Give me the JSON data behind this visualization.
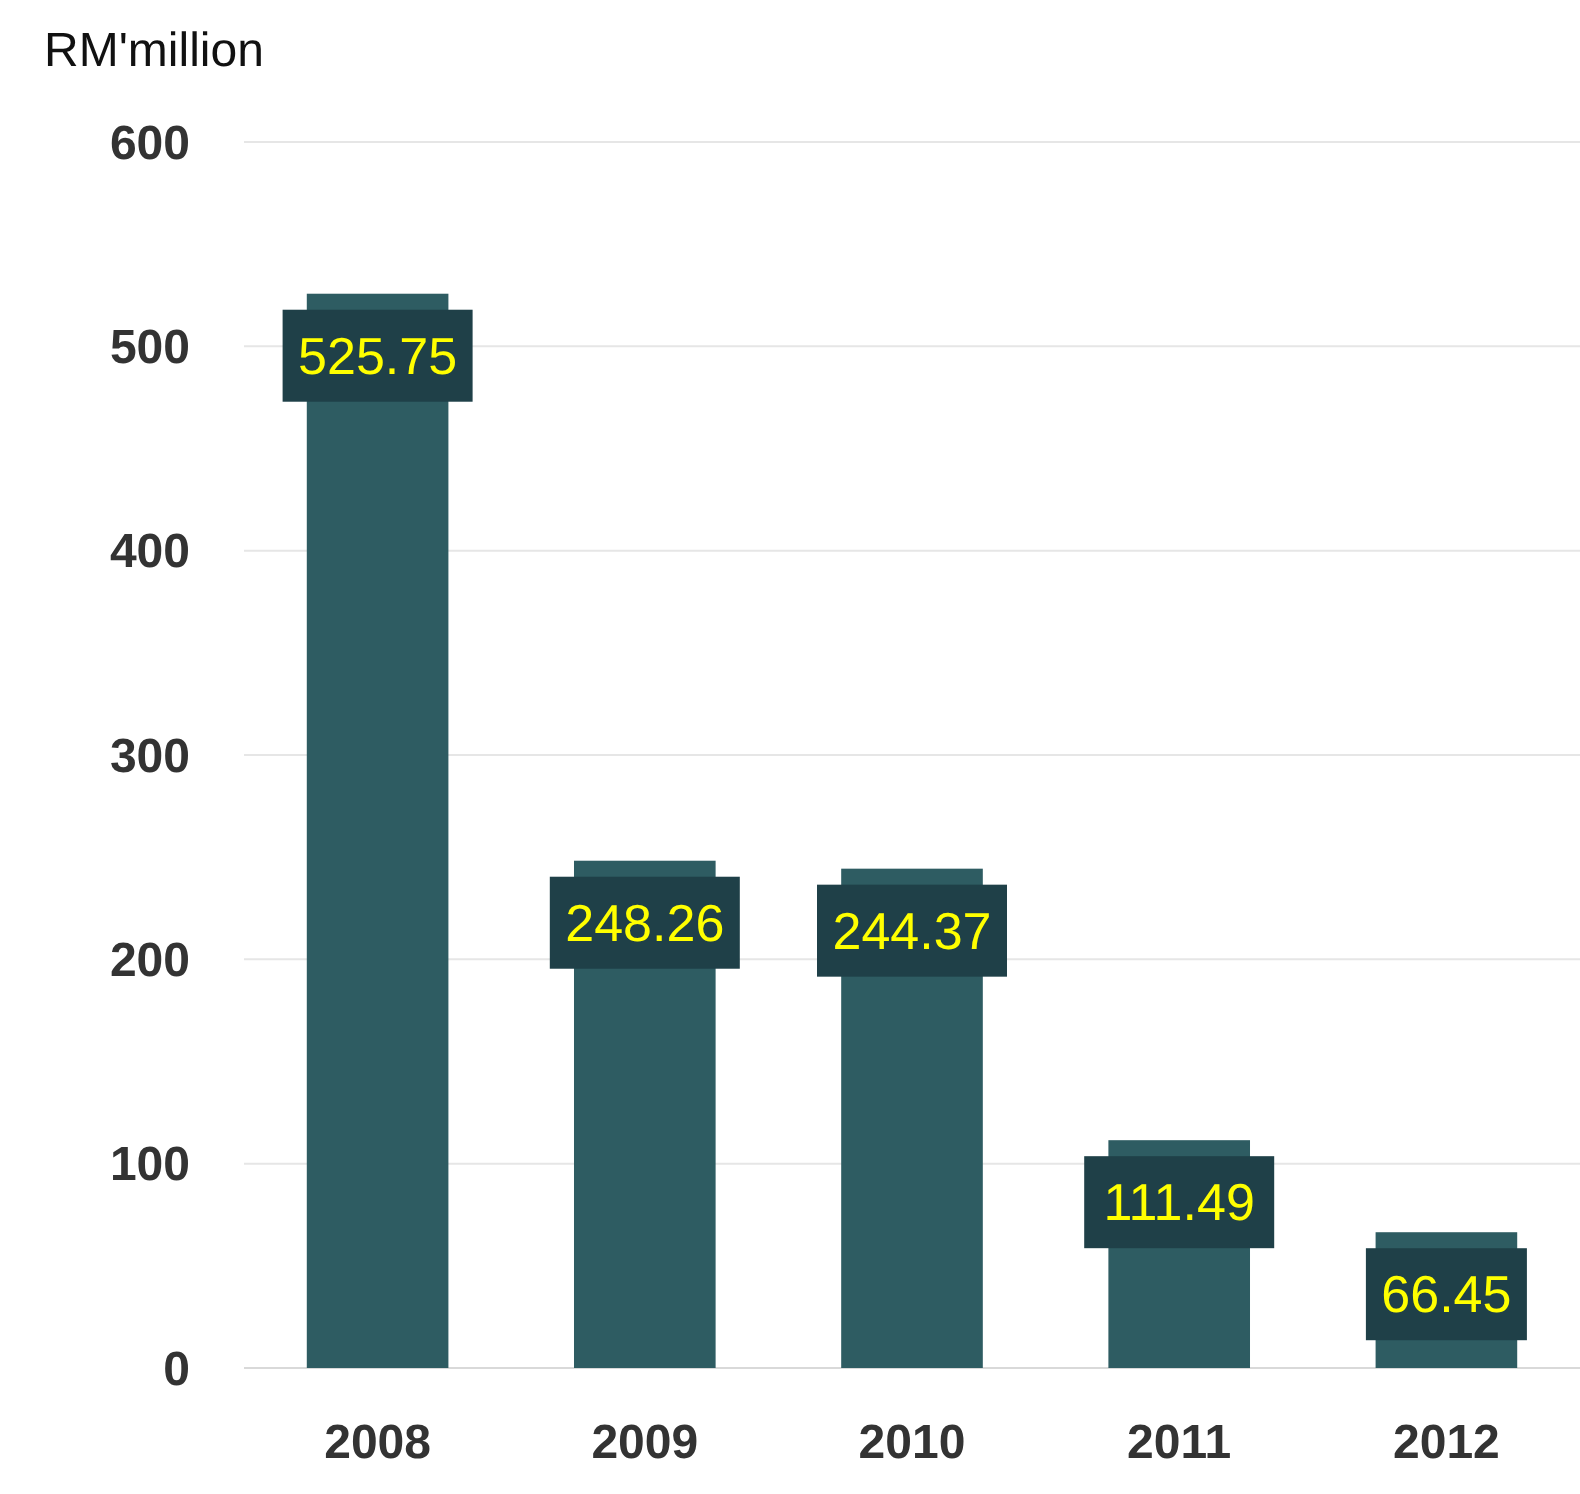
{
  "chart_data": {
    "type": "bar",
    "ylabel": "RM'million",
    "categories": [
      "2008",
      "2009",
      "2010",
      "2011",
      "2012"
    ],
    "values": [
      525.75,
      248.26,
      244.37,
      111.49,
      66.45
    ],
    "color": "#2e5c62",
    "ylim": [
      0,
      600
    ],
    "yticks": [
      0,
      100,
      200,
      300,
      400,
      500,
      600
    ],
    "grid": "y",
    "data_labels": true
  }
}
